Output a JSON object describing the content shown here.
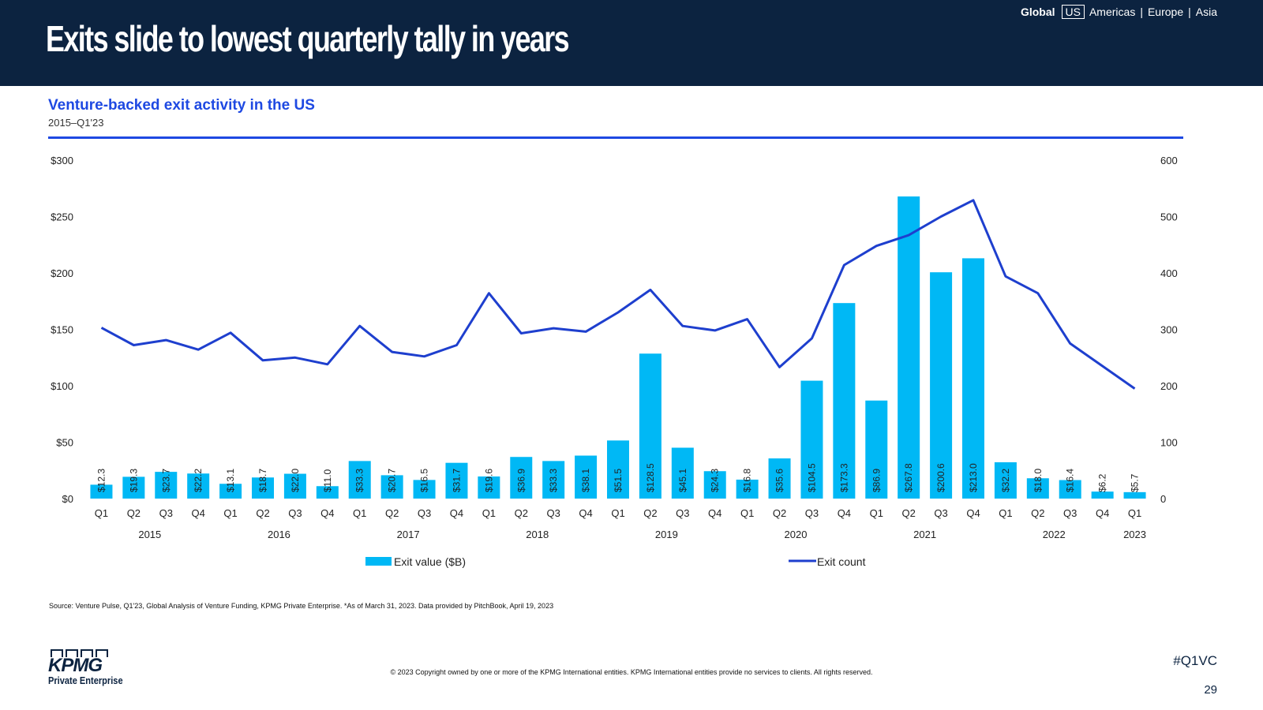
{
  "header": {
    "title": "Exits slide to lowest quarterly tally in years",
    "nav": {
      "global": "Global",
      "us": "US",
      "americas": "Americas",
      "sep1": "|",
      "europe": "Europe",
      "sep2": "|",
      "asia": "Asia"
    }
  },
  "colors": {
    "banner": "#0c2340",
    "bar": "#00b8f5",
    "line": "#1e3fce",
    "title_accent": "#1e49e2"
  },
  "chart_data": {
    "type": "bar",
    "title": "Venture-backed exit activity in the US",
    "subtitle": "2015–Q1'23",
    "categories": [
      "Q1",
      "Q2",
      "Q3",
      "Q4",
      "Q1",
      "Q2",
      "Q3",
      "Q4",
      "Q1",
      "Q2",
      "Q3",
      "Q4",
      "Q1",
      "Q2",
      "Q3",
      "Q4",
      "Q1",
      "Q2",
      "Q3",
      "Q4",
      "Q1",
      "Q2",
      "Q3",
      "Q4",
      "Q1",
      "Q2",
      "Q3",
      "Q4",
      "Q1",
      "Q2",
      "Q3",
      "Q4",
      "Q1"
    ],
    "years": [
      {
        "label": "2015",
        "start": 0,
        "end": 3
      },
      {
        "label": "2016",
        "start": 4,
        "end": 7
      },
      {
        "label": "2017",
        "start": 8,
        "end": 11
      },
      {
        "label": "2018",
        "start": 12,
        "end": 15
      },
      {
        "label": "2019",
        "start": 16,
        "end": 19
      },
      {
        "label": "2020",
        "start": 20,
        "end": 23
      },
      {
        "label": "2021",
        "start": 24,
        "end": 27
      },
      {
        "label": "2022",
        "start": 28,
        "end": 31
      },
      {
        "label": "2023",
        "start": 32,
        "end": 32
      }
    ],
    "series": [
      {
        "name": "Exit value ($B)",
        "type": "bar",
        "axis": "left",
        "values": [
          12.3,
          19.3,
          23.7,
          22.2,
          13.1,
          18.7,
          22.0,
          11.0,
          33.3,
          20.7,
          16.5,
          31.7,
          19.6,
          36.9,
          33.3,
          38.1,
          51.5,
          128.5,
          45.1,
          24.3,
          16.8,
          35.6,
          104.5,
          173.3,
          86.9,
          267.8,
          200.6,
          213.0,
          32.2,
          18.0,
          16.4,
          6.2,
          5.7
        ],
        "labels": [
          "$12.3",
          "$19.3",
          "$23.7",
          "$22.2",
          "$13.1",
          "$18.7",
          "$22.0",
          "$11.0",
          "$33.3",
          "$20.7",
          "$16.5",
          "$31.7",
          "$19.6",
          "$36.9",
          "$33.3",
          "$38.1",
          "$51.5",
          "$128.5",
          "$45.1",
          "$24.3",
          "$16.8",
          "$35.6",
          "$104.5",
          "$173.3",
          "$86.9",
          "$267.8",
          "$200.6",
          "$213.0",
          "$32.2",
          "$18.0",
          "$16.4",
          "$6.2",
          "$5.7"
        ]
      },
      {
        "name": "Exit count",
        "type": "line",
        "axis": "right",
        "values": [
          303,
          272,
          281,
          264,
          294,
          245,
          250,
          238,
          306,
          260,
          252,
          272,
          364,
          293,
          302,
          296,
          330,
          370,
          306,
          298,
          318,
          233,
          284,
          414,
          448,
          467,
          500,
          529,
          394,
          364,
          275,
          235,
          195
        ]
      }
    ],
    "y_left": {
      "min": 0,
      "max": 300,
      "ticks": [
        0,
        50,
        100,
        150,
        200,
        250,
        300
      ],
      "tick_labels": [
        "$0",
        "$50",
        "$100",
        "$150",
        "$200",
        "$250",
        "$300"
      ]
    },
    "y_right": {
      "min": 0,
      "max": 600,
      "ticks": [
        0,
        100,
        200,
        300,
        400,
        500,
        600
      ],
      "tick_labels": [
        "0",
        "100",
        "200",
        "300",
        "400",
        "500",
        "600"
      ]
    },
    "grid": false,
    "legend_position": "bottom"
  },
  "footer": {
    "source": "Source: Venture Pulse, Q1'23, Global Analysis of Venture Funding, KPMG Private Enterprise. *As of March 31, 2023. Data provided by PitchBook, April 19, 2023",
    "copyright": "© 2023 Copyright owned by one or more of the KPMG International entities. KPMG International entities provide no services to clients. All rights reserved.",
    "hashtag": "#Q1VC",
    "page_number": "29",
    "logo_text": "KPMG",
    "logo_subtext": "Private Enterprise"
  }
}
